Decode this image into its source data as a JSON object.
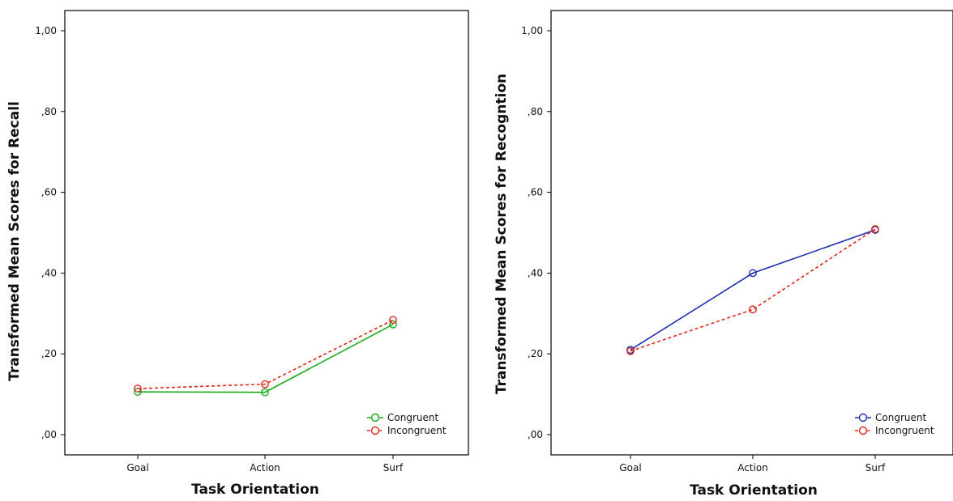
{
  "chart_data": [
    {
      "type": "line",
      "title": "",
      "xlabel": "Task Orientation",
      "ylabel": "Transformed Mean Scores for Recall",
      "categories": [
        "Goal",
        "Action",
        "Surf"
      ],
      "ylim": [
        -0.05,
        1.05
      ],
      "yticks": [
        0.0,
        0.2,
        0.4,
        0.6,
        0.8,
        1.0
      ],
      "ytick_labels": [
        ",00",
        ",20",
        ",40",
        ",60",
        ",80",
        "1,00"
      ],
      "grid": false,
      "legend_position": "bottom-right",
      "series": [
        {
          "name": "Congruent",
          "values": [
            0.106,
            0.105,
            0.273
          ],
          "color": "#1aaa1a",
          "dash": "solid"
        },
        {
          "name": "Incongruent",
          "values": [
            0.114,
            0.125,
            0.284
          ],
          "color": "#e0261e",
          "dash": "dashed"
        }
      ]
    },
    {
      "type": "line",
      "title": "",
      "xlabel": "Task Orientation",
      "ylabel": "Transformed Mean Scores for Recogntion",
      "categories": [
        "Goal",
        "Action",
        "Surf"
      ],
      "ylim": [
        -0.05,
        1.05
      ],
      "yticks": [
        0.0,
        0.2,
        0.4,
        0.6,
        0.8,
        1.0
      ],
      "ytick_labels": [
        ",00",
        ",20",
        ",40",
        ",60",
        ",80",
        "1,00"
      ],
      "grid": false,
      "legend_position": "bottom-right",
      "series": [
        {
          "name": "Congruent",
          "values": [
            0.21,
            0.4,
            0.507
          ],
          "color": "#1f2fb0",
          "dash": "solid"
        },
        {
          "name": "Incongruent",
          "values": [
            0.207,
            0.31,
            0.509
          ],
          "color": "#e0261e",
          "dash": "dashed"
        }
      ]
    }
  ]
}
